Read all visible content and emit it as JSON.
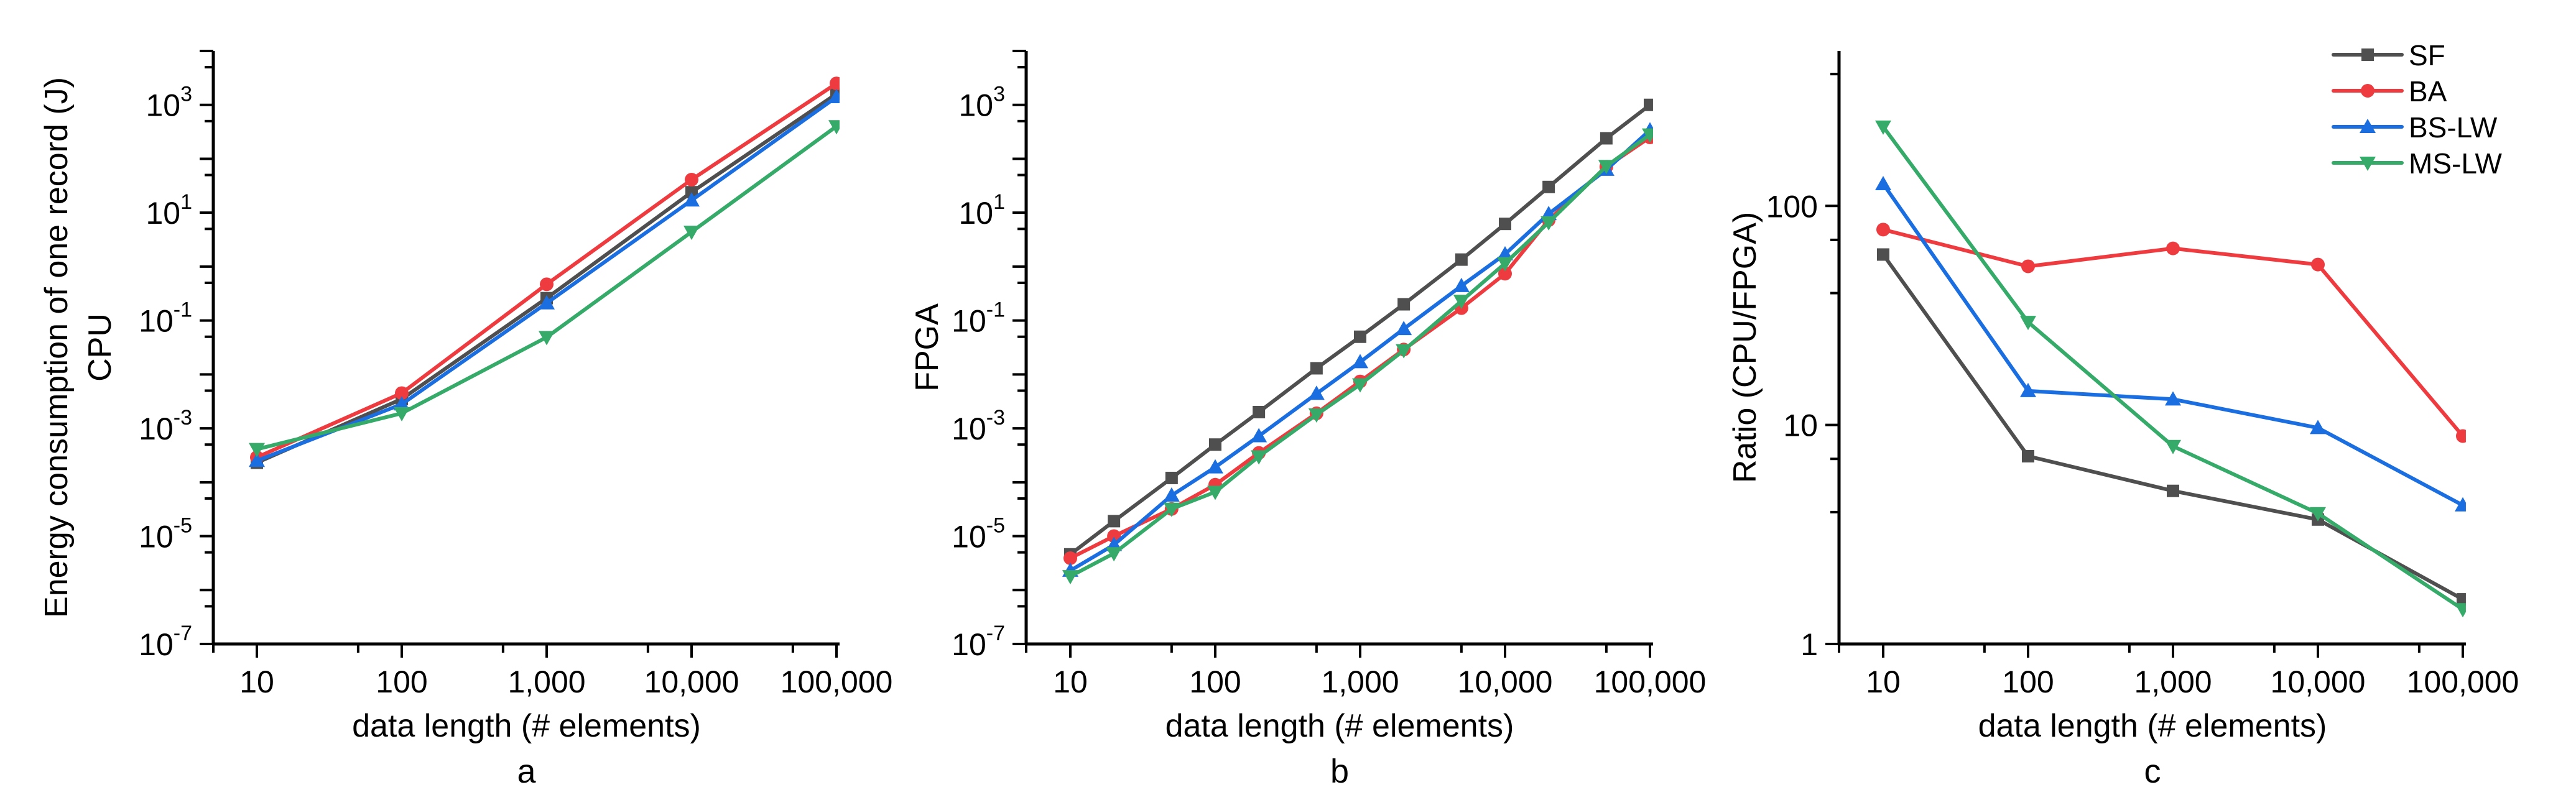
{
  "figure": {
    "series_styles": [
      {
        "name": "SF",
        "color": "#4f4f4f",
        "marker": "square"
      },
      {
        "name": "BA",
        "color": "#ee3b3f",
        "marker": "circle"
      },
      {
        "name": "BS-LW",
        "color": "#1a6ee0",
        "marker": "triangle-up"
      },
      {
        "name": "MS-LW",
        "color": "#35aa69",
        "marker": "triangle-down"
      }
    ],
    "legend": {
      "panel": "c",
      "position": "top-right",
      "entries": [
        "SF",
        "BA",
        "BS-LW",
        "MS-LW"
      ]
    }
  },
  "chart_data": [
    {
      "panel": "a",
      "type": "line",
      "title": "",
      "panel_label": "a",
      "xlabel": "data length (# elements)",
      "ylabel": "Energy consumption of one record (J)",
      "ylabel_line2": "CPU",
      "xscale": "log",
      "yscale": "log",
      "xlim": [
        5,
        105000
      ],
      "ylim": [
        1e-07,
        10000.0
      ],
      "x_ticks": [
        10,
        100,
        1000,
        10000,
        100000
      ],
      "x_tick_labels": [
        "10",
        "100",
        "1,000",
        "10,000",
        "100,000"
      ],
      "y_tick_labels": [
        {
          "base": "10",
          "exp": "3",
          "value": 1000.0
        },
        {
          "base": "10",
          "exp": "1",
          "value": 10.0
        },
        {
          "base": "10",
          "exp": "-1",
          "value": 0.1
        },
        {
          "base": "10",
          "exp": "-3",
          "value": 0.001
        },
        {
          "base": "10",
          "exp": "-5",
          "value": 1e-05
        },
        {
          "base": "10",
          "exp": "-7",
          "value": 1e-07
        }
      ],
      "grid": false,
      "x": [
        10,
        100,
        1000,
        10000,
        100000
      ],
      "series": [
        {
          "name": "SF",
          "values": [
            0.00023,
            0.0035,
            0.26,
            24,
            1600
          ]
        },
        {
          "name": "BA",
          "values": [
            0.00029,
            0.0045,
            0.47,
            41,
            2500
          ]
        },
        {
          "name": "BS-LW",
          "values": [
            0.00025,
            0.0028,
            0.21,
            17,
            1400
          ]
        },
        {
          "name": "MS-LW",
          "values": [
            0.00041,
            0.0019,
            0.049,
            4.4,
            400
          ]
        }
      ]
    },
    {
      "panel": "b",
      "type": "line",
      "title": "",
      "panel_label": "b",
      "xlabel": "data length (# elements)",
      "ylabel": "FPGA",
      "ylabel_line2": "",
      "xscale": "log",
      "yscale": "log",
      "xlim": [
        5,
        105000
      ],
      "ylim": [
        1e-07,
        10000.0
      ],
      "x_ticks": [
        10,
        100,
        1000,
        10000,
        100000
      ],
      "x_tick_labels": [
        "10",
        "100",
        "1,000",
        "10,000",
        "100,000"
      ],
      "y_tick_labels": [
        {
          "base": "10",
          "exp": "3",
          "value": 1000.0
        },
        {
          "base": "10",
          "exp": "1",
          "value": 10.0
        },
        {
          "base": "10",
          "exp": "-1",
          "value": 0.1
        },
        {
          "base": "10",
          "exp": "-3",
          "value": 0.001
        },
        {
          "base": "10",
          "exp": "-5",
          "value": 1e-05
        },
        {
          "base": "10",
          "exp": "-7",
          "value": 1e-07
        }
      ],
      "grid": false,
      "x": [
        10,
        20,
        50,
        100,
        200,
        500,
        1000,
        2000,
        5000,
        10000,
        20000,
        50000,
        100000
      ],
      "series": [
        {
          "name": "SF",
          "values": [
            4.6e-06,
            1.9e-05,
            0.00012,
            0.0005,
            0.002,
            0.013,
            0.05,
            0.2,
            1.35,
            6.2,
            30,
            240,
            1000
          ]
        },
        {
          "name": "BA",
          "values": [
            3.9e-06,
            1e-05,
            3.2e-05,
            9e-05,
            0.00035,
            0.0019,
            0.0074,
            0.029,
            0.17,
            0.74,
            7.3,
            71,
            250
          ]
        },
        {
          "name": "BS-LW",
          "values": [
            2.3e-06,
            6.9e-06,
            5.7e-05,
            0.00019,
            0.00072,
            0.0044,
            0.017,
            0.07,
            0.44,
            1.7,
            9.5,
            63,
            340
          ]
        },
        {
          "name": "MS-LW",
          "values": [
            1.8e-06,
            4.8e-06,
            3.2e-05,
            6.6e-05,
            0.0003,
            0.0018,
            0.0065,
            0.028,
            0.23,
            1.15,
            6.6,
            73,
            280
          ]
        }
      ]
    },
    {
      "panel": "c",
      "type": "line",
      "title": "",
      "panel_label": "c",
      "xlabel": "data length (# elements)",
      "ylabel": "Ratio (CPU/FPGA)",
      "ylabel_line2": "",
      "xscale": "log",
      "yscale": "log",
      "xlim": [
        5,
        105000
      ],
      "ylim": [
        1,
        510
      ],
      "x_ticks": [
        10,
        100,
        1000,
        10000,
        100000
      ],
      "x_tick_labels": [
        "10",
        "100",
        "1,000",
        "10,000",
        "100,000"
      ],
      "y_tick_labels": [
        {
          "base": "100",
          "exp": "",
          "value": 100
        },
        {
          "base": "10",
          "exp": "",
          "value": 10
        },
        {
          "base": "1",
          "exp": "",
          "value": 1
        }
      ],
      "grid": false,
      "x": [
        10,
        100,
        1000,
        10000,
        100000
      ],
      "series": [
        {
          "name": "SF",
          "values": [
            60,
            7.2,
            5.0,
            3.7,
            1.6
          ]
        },
        {
          "name": "BA",
          "values": [
            78,
            53,
            64,
            54,
            8.9
          ]
        },
        {
          "name": "BS-LW",
          "values": [
            126,
            14.3,
            13.1,
            9.7,
            4.3
          ]
        },
        {
          "name": "MS-LW",
          "values": [
            230,
            29.5,
            8.0,
            3.95,
            1.44
          ]
        }
      ]
    }
  ]
}
